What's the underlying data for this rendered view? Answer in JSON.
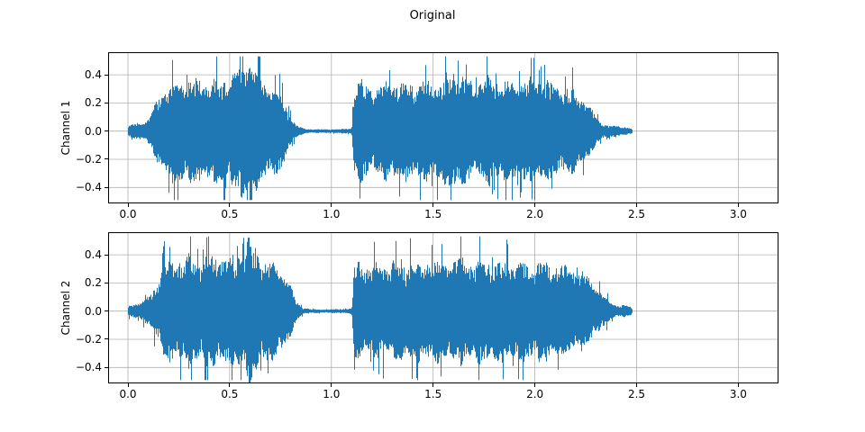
{
  "figure": {
    "title": "Original",
    "background": "#ffffff"
  },
  "colors": {
    "waveform": "#1f77b4",
    "grid": "#b0b0b0",
    "spine": "#000000",
    "text": "#000000"
  },
  "chart_data": [
    {
      "type": "line",
      "variant": "audio-waveform",
      "title": "Original",
      "xlabel": "",
      "ylabel": "Channel 1",
      "xticks": [
        0.0,
        0.5,
        1.0,
        1.5,
        2.0,
        2.5,
        3.0
      ],
      "yticks": [
        -0.4,
        -0.2,
        0.0,
        0.2,
        0.4
      ],
      "xlim": [
        -0.093,
        3.193
      ],
      "ylim": [
        -0.507,
        0.554
      ],
      "grid": true,
      "legend": null,
      "signal": {
        "t_start": 0.0,
        "t_end": 2.48,
        "peak_amplitude": 0.52,
        "segments": [
          {
            "label": "lead-in-noise",
            "t0": 0.0,
            "t1": 0.1,
            "peak": 0.07
          },
          {
            "label": "burst-1",
            "t0": 0.1,
            "t1": 0.85,
            "peak": 0.52
          },
          {
            "label": "silence",
            "t0": 0.85,
            "t1": 1.11,
            "peak": 0.015
          },
          {
            "label": "burst-2",
            "t0": 1.11,
            "t1": 2.48,
            "peak": 0.47
          }
        ],
        "envelope_t": [
          0.0,
          0.03,
          0.06,
          0.09,
          0.11,
          0.14,
          0.17,
          0.2,
          0.25,
          0.3,
          0.35,
          0.4,
          0.45,
          0.5,
          0.54,
          0.575,
          0.6,
          0.63,
          0.67,
          0.71,
          0.75,
          0.78,
          0.81,
          0.84,
          0.88,
          0.95,
          1.05,
          1.1,
          1.113,
          1.13,
          1.2,
          1.27,
          1.34,
          1.41,
          1.48,
          1.55,
          1.6,
          1.63,
          1.66,
          1.72,
          1.78,
          1.84,
          1.9,
          1.96,
          2.02,
          2.08,
          2.14,
          2.2,
          2.26,
          2.31,
          2.36,
          2.4,
          2.44,
          2.47,
          2.48
        ],
        "envelope_amp": [
          0.03,
          0.05,
          0.06,
          0.07,
          0.1,
          0.2,
          0.28,
          0.32,
          0.34,
          0.36,
          0.34,
          0.34,
          0.35,
          0.36,
          0.4,
          0.5,
          0.46,
          0.4,
          0.34,
          0.3,
          0.26,
          0.17,
          0.07,
          0.03,
          0.014,
          0.012,
          0.014,
          0.02,
          0.32,
          0.34,
          0.3,
          0.33,
          0.35,
          0.32,
          0.34,
          0.35,
          0.42,
          0.38,
          0.34,
          0.33,
          0.36,
          0.34,
          0.35,
          0.34,
          0.36,
          0.32,
          0.3,
          0.27,
          0.18,
          0.08,
          0.035,
          0.04,
          0.03,
          0.02,
          0.012
        ]
      }
    },
    {
      "type": "line",
      "variant": "audio-waveform",
      "title": "",
      "xlabel": "",
      "ylabel": "Channel 2",
      "xticks": [
        0.0,
        0.5,
        1.0,
        1.5,
        2.0,
        2.5,
        3.0
      ],
      "yticks": [
        -0.4,
        -0.2,
        0.0,
        0.2,
        0.4
      ],
      "xlim": [
        -0.093,
        3.193
      ],
      "ylim": [
        -0.507,
        0.554
      ],
      "grid": true,
      "legend": null,
      "signal": {
        "t_start": 0.0,
        "t_end": 2.48,
        "peak_amplitude": 0.5,
        "segments": [
          {
            "label": "lead-in-noise",
            "t0": 0.0,
            "t1": 0.1,
            "peak": 0.08
          },
          {
            "label": "burst-1",
            "t0": 0.1,
            "t1": 0.86,
            "peak": 0.5
          },
          {
            "label": "silence",
            "t0": 0.86,
            "t1": 1.11,
            "peak": 0.015
          },
          {
            "label": "burst-2",
            "t0": 1.11,
            "t1": 2.48,
            "peak": 0.45
          }
        ],
        "envelope_t": [
          0.0,
          0.03,
          0.06,
          0.09,
          0.11,
          0.14,
          0.17,
          0.2,
          0.25,
          0.3,
          0.35,
          0.4,
          0.45,
          0.5,
          0.55,
          0.59,
          0.62,
          0.65,
          0.69,
          0.73,
          0.77,
          0.8,
          0.83,
          0.86,
          0.9,
          0.97,
          1.05,
          1.1,
          1.113,
          1.13,
          1.2,
          1.27,
          1.34,
          1.41,
          1.48,
          1.55,
          1.62,
          1.69,
          1.76,
          1.83,
          1.9,
          1.97,
          2.04,
          2.11,
          2.18,
          2.24,
          2.3,
          2.35,
          2.4,
          2.44,
          2.47,
          2.48
        ],
        "envelope_amp": [
          0.03,
          0.05,
          0.06,
          0.08,
          0.11,
          0.2,
          0.29,
          0.33,
          0.35,
          0.37,
          0.35,
          0.36,
          0.38,
          0.36,
          0.4,
          0.48,
          0.44,
          0.38,
          0.34,
          0.31,
          0.26,
          0.16,
          0.06,
          0.025,
          0.013,
          0.012,
          0.014,
          0.02,
          0.31,
          0.33,
          0.3,
          0.32,
          0.34,
          0.33,
          0.35,
          0.34,
          0.36,
          0.33,
          0.35,
          0.34,
          0.33,
          0.34,
          0.33,
          0.31,
          0.29,
          0.26,
          0.17,
          0.08,
          0.04,
          0.04,
          0.03,
          0.012
        ]
      }
    }
  ]
}
